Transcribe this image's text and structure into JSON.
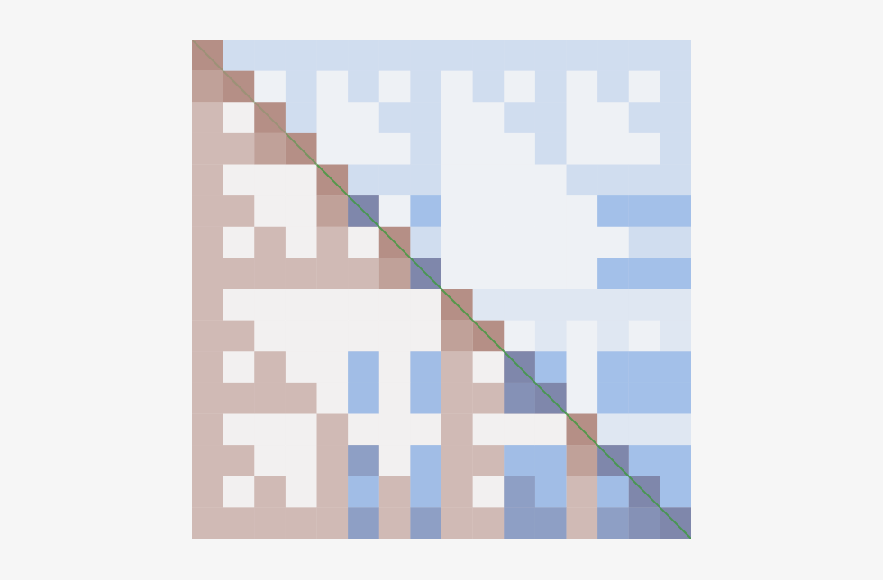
{
  "chart_data": {
    "type": "heatmap",
    "tick_labels": false,
    "colors": [
      "#8a4b3c",
      "#3d7fd9",
      "#3c9a3c"
    ],
    "density_range": [
      0,
      1
    ],
    "brown_density": [
      [
        0.6,
        0,
        0,
        0,
        0,
        0,
        0,
        0,
        0,
        0,
        0,
        0,
        0,
        0,
        0,
        0
      ],
      [
        0.5,
        0.6,
        0,
        0,
        0,
        0,
        0,
        0,
        0,
        0,
        0,
        0,
        0,
        0,
        0,
        0
      ],
      [
        0.35,
        0.03,
        0.6,
        0,
        0,
        0,
        0,
        0,
        0,
        0,
        0,
        0,
        0,
        0,
        0,
        0
      ],
      [
        0.35,
        0.35,
        0.5,
        0.6,
        0,
        0,
        0,
        0,
        0,
        0,
        0,
        0,
        0,
        0,
        0,
        0
      ],
      [
        0.35,
        0.03,
        0.03,
        0.03,
        0.6,
        0,
        0,
        0,
        0,
        0,
        0,
        0,
        0,
        0,
        0,
        0
      ],
      [
        0.35,
        0.35,
        0.03,
        0.03,
        0.5,
        0.6,
        0,
        0,
        0,
        0,
        0,
        0,
        0,
        0,
        0,
        0
      ],
      [
        0.35,
        0.03,
        0.35,
        0.03,
        0.35,
        0.03,
        0.6,
        0,
        0,
        0,
        0,
        0,
        0,
        0,
        0,
        0
      ],
      [
        0.35,
        0.35,
        0.35,
        0.35,
        0.35,
        0.35,
        0.5,
        0.6,
        0,
        0,
        0,
        0,
        0,
        0,
        0,
        0
      ],
      [
        0.35,
        0.03,
        0.03,
        0.03,
        0.03,
        0.03,
        0.03,
        0.03,
        0.6,
        0,
        0,
        0,
        0,
        0,
        0,
        0
      ],
      [
        0.35,
        0.35,
        0.03,
        0.03,
        0.03,
        0.03,
        0.03,
        0.03,
        0.5,
        0.6,
        0,
        0,
        0,
        0,
        0,
        0
      ],
      [
        0.35,
        0.03,
        0.35,
        0.03,
        0.03,
        0.03,
        0.03,
        0.03,
        0.35,
        0.03,
        0.6,
        0,
        0,
        0,
        0,
        0
      ],
      [
        0.35,
        0.35,
        0.35,
        0.35,
        0.03,
        0.03,
        0.03,
        0.03,
        0.35,
        0.35,
        0.5,
        0.6,
        0,
        0,
        0,
        0
      ],
      [
        0.35,
        0.03,
        0.03,
        0.03,
        0.35,
        0.03,
        0.03,
        0.03,
        0.35,
        0.03,
        0.03,
        0.03,
        0.6,
        0,
        0,
        0
      ],
      [
        0.35,
        0.35,
        0.03,
        0.03,
        0.35,
        0.35,
        0.03,
        0.03,
        0.35,
        0.35,
        0.03,
        0.03,
        0.5,
        0.6,
        0,
        0
      ],
      [
        0.35,
        0.03,
        0.35,
        0.03,
        0.35,
        0.03,
        0.35,
        0.03,
        0.35,
        0.03,
        0.35,
        0.03,
        0.35,
        0.03,
        0.6,
        0
      ],
      [
        0.35,
        0.35,
        0.35,
        0.35,
        0.35,
        0.35,
        0.35,
        0.35,
        0.35,
        0.35,
        0.35,
        0.35,
        0.35,
        0.35,
        0.5,
        0.6
      ]
    ],
    "blue_density": [
      [
        0,
        0.2,
        0.2,
        0.2,
        0.2,
        0.2,
        0.2,
        0.2,
        0.2,
        0.2,
        0.2,
        0.2,
        0.2,
        0.2,
        0.2,
        0.2
      ],
      [
        0,
        0,
        0.04,
        0.2,
        0.04,
        0.2,
        0.04,
        0.2,
        0.04,
        0.2,
        0.04,
        0.2,
        0.04,
        0.2,
        0.04,
        0.2
      ],
      [
        0,
        0,
        0,
        0.2,
        0.04,
        0.04,
        0.2,
        0.2,
        0.04,
        0.04,
        0.2,
        0.2,
        0.04,
        0.04,
        0.2,
        0.2
      ],
      [
        0,
        0,
        0,
        0,
        0.04,
        0.04,
        0.04,
        0.2,
        0.04,
        0.04,
        0.04,
        0.2,
        0.04,
        0.04,
        0.04,
        0.2
      ],
      [
        0,
        0,
        0,
        0,
        0,
        0.2,
        0.2,
        0.2,
        0.04,
        0.04,
        0.04,
        0.04,
        0.2,
        0.2,
        0.2,
        0.2
      ],
      [
        0,
        0,
        0,
        0,
        0,
        0.45,
        0.04,
        0.45,
        0.04,
        0.04,
        0.04,
        0.04,
        0.04,
        0.45,
        0.45,
        0.45
      ],
      [
        0,
        0,
        0,
        0,
        0,
        0,
        0,
        0.2,
        0.04,
        0.04,
        0.04,
        0.04,
        0.04,
        0.04,
        0.2,
        0.2
      ],
      [
        0,
        0,
        0,
        0,
        0,
        0,
        0,
        0.45,
        0.04,
        0.04,
        0.04,
        0.04,
        0.04,
        0.45,
        0.45,
        0.45
      ],
      [
        0,
        0,
        0,
        0,
        0,
        0,
        0,
        0,
        0,
        0.12,
        0.12,
        0.12,
        0.12,
        0.12,
        0.12,
        0.12
      ],
      [
        0,
        0,
        0,
        0,
        0,
        0,
        0,
        0,
        0,
        0,
        0.04,
        0.12,
        0.04,
        0.12,
        0.04,
        0.12
      ],
      [
        0,
        0,
        0,
        0,
        0,
        0.45,
        0,
        0.45,
        0,
        0,
        0.45,
        0.45,
        0.04,
        0.45,
        0.45,
        0.45
      ],
      [
        0,
        0,
        0,
        0,
        0,
        0.45,
        0,
        0.45,
        0,
        0,
        0.45,
        0.45,
        0.04,
        0.45,
        0.45,
        0.45
      ],
      [
        0,
        0,
        0,
        0,
        0,
        0,
        0,
        0,
        0,
        0,
        0,
        0,
        0,
        0.12,
        0.12,
        0.12
      ],
      [
        0,
        0,
        0,
        0,
        0,
        0.45,
        0,
        0.45,
        0,
        0,
        0.45,
        0.45,
        0,
        0.45,
        0.45,
        0.45
      ],
      [
        0,
        0,
        0,
        0,
        0,
        0.45,
        0,
        0.45,
        0,
        0,
        0.45,
        0.45,
        0,
        0.45,
        0.45,
        0.45
      ],
      [
        0,
        0,
        0,
        0,
        0,
        0.45,
        0,
        0.45,
        0,
        0,
        0.45,
        0.45,
        0,
        0.45,
        0.45,
        0.45
      ]
    ],
    "diagonal_density": [
      0.2,
      0.2,
      0.2,
      0.5,
      0.8,
      0.8,
      0.8,
      0.8,
      0.8,
      0.8,
      0.8,
      0.8,
      0.8,
      0.8,
      0.8,
      0.8
    ]
  }
}
